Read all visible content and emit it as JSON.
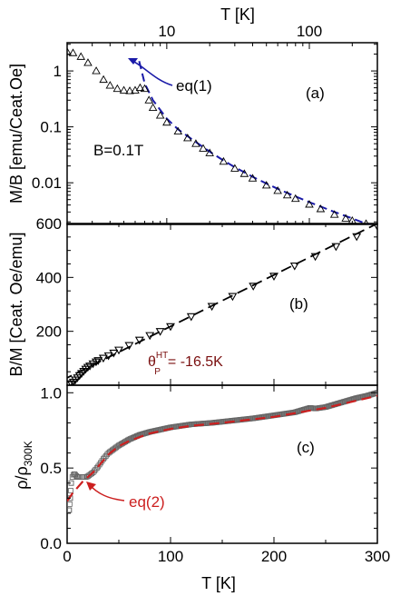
{
  "chart_data": [
    {
      "id": "a",
      "type": "scatter",
      "panel_label": "(a)",
      "ylabel": "M/B [emu/Ceat.Oe]",
      "top_xlabel": "T [K]",
      "top_xticks": [
        "10",
        "100"
      ],
      "x_scale": "log",
      "y_scale": "log",
      "xlim": [
        2,
        300
      ],
      "ylim": [
        0.0018,
        3.2
      ],
      "yticks": [
        {
          "v": 1,
          "label": "1"
        },
        {
          "v": 0.1,
          "label": "0.1"
        },
        {
          "v": 0.01,
          "label": "0.01"
        }
      ],
      "annotations": [
        {
          "text": "B=0.1T",
          "color": "#000000"
        },
        {
          "text": "eq(1)",
          "color": "#1a1aa8"
        }
      ],
      "series": [
        {
          "style": "open-triangle-up markers",
          "color": "#000000",
          "x": [
            2,
            2.2,
            2.5,
            2.8,
            3.2,
            3.6,
            4,
            4.5,
            5,
            5.5,
            6,
            6.5,
            7,
            7.5,
            8,
            9,
            10,
            12,
            14,
            16,
            18,
            20,
            25,
            30,
            35,
            40,
            50,
            60,
            70,
            80,
            100,
            120,
            150,
            180,
            200,
            250,
            300
          ],
          "y": [
            2.2,
            2.1,
            1.8,
            1.4,
            1.0,
            0.7,
            0.55,
            0.48,
            0.45,
            0.44,
            0.45,
            0.5,
            0.48,
            0.3,
            0.22,
            0.16,
            0.12,
            0.083,
            0.063,
            0.05,
            0.041,
            0.034,
            0.024,
            0.018,
            0.0145,
            0.012,
            0.009,
            0.0072,
            0.006,
            0.0052,
            0.0041,
            0.0034,
            0.0027,
            0.0023,
            0.0021,
            0.00185,
            0.0016
          ]
        },
        {
          "name": "eq(1)",
          "style": "dashed line",
          "color": "#1a1aa8",
          "x": [
            6.4,
            7,
            8,
            10,
            12,
            15,
            20,
            25,
            30,
            40,
            50,
            60,
            80,
            100,
            150,
            200,
            250,
            300
          ],
          "y": [
            1.5,
            0.6,
            0.3,
            0.14,
            0.09,
            0.06,
            0.036,
            0.025,
            0.019,
            0.0128,
            0.0097,
            0.0078,
            0.0057,
            0.0045,
            0.003,
            0.0023,
            0.00185,
            0.0016
          ]
        }
      ]
    },
    {
      "id": "b",
      "type": "scatter",
      "panel_label": "(b)",
      "ylabel": "B/M [Ceat. Oe/emu]",
      "xlim": [
        0,
        300
      ],
      "ylim": [
        0,
        600
      ],
      "yticks": [
        {
          "v": 200,
          "label": "200"
        },
        {
          "v": 400,
          "label": "400"
        },
        {
          "v": 600,
          "label": "600"
        }
      ],
      "annotation": {
        "symbol": "θ",
        "superscript": "HT",
        "subscript": "P",
        "text": "= -16.5K",
        "color": "#7a0f0f"
      },
      "series": [
        {
          "style": "triangle-down markers",
          "color": "#000000",
          "x": [
            2,
            4,
            6,
            8,
            10,
            12,
            14,
            16,
            18,
            20,
            22,
            25,
            28,
            30,
            35,
            40,
            45,
            50,
            60,
            70,
            80,
            90,
            100,
            120,
            140,
            160,
            180,
            200,
            220,
            240,
            260,
            280,
            300
          ],
          "y": [
            3,
            6,
            12,
            20,
            28,
            36,
            44,
            52,
            60,
            67,
            72,
            80,
            87,
            92,
            101,
            110,
            120,
            131,
            148,
            168,
            185,
            200,
            218,
            255,
            293,
            330,
            368,
            405,
            443,
            478,
            515,
            552,
            590
          ]
        },
        {
          "style": "dashed line",
          "color": "#000000",
          "x": [
            -5,
            300
          ],
          "y": [
            18,
            600
          ]
        }
      ]
    },
    {
      "id": "c",
      "type": "line",
      "panel_label": "(c)",
      "ylabel": "ρ/ρ",
      "ylabel_sub": "300K",
      "xlabel": "T [K]",
      "xlim": [
        0,
        300
      ],
      "ylim": [
        0,
        1.05
      ],
      "xticks": [
        0,
        100,
        200,
        300
      ],
      "yticks": [
        {
          "v": 0,
          "label": "0.0"
        },
        {
          "v": 0.5,
          "label": "0.5"
        },
        {
          "v": 1.0,
          "label": "1.0"
        }
      ],
      "annotations": [
        {
          "text": "eq(2)",
          "color": "#cc1f1f"
        }
      ],
      "series": [
        {
          "style": "open-square markers",
          "color": "#555555",
          "x": [
            2,
            3,
            4,
            5,
            6,
            7,
            8,
            10,
            12,
            15,
            18,
            20,
            25,
            30,
            35,
            40,
            50,
            60,
            70,
            80,
            90,
            100,
            110,
            120,
            140,
            160,
            180,
            200,
            220,
            235,
            240,
            250,
            260,
            270,
            280,
            290,
            300
          ],
          "y": [
            0.22,
            0.3,
            0.4,
            0.44,
            0.455,
            0.46,
            0.455,
            0.44,
            0.44,
            0.44,
            0.44,
            0.445,
            0.47,
            0.51,
            0.56,
            0.6,
            0.65,
            0.69,
            0.72,
            0.74,
            0.755,
            0.77,
            0.78,
            0.79,
            0.8,
            0.815,
            0.83,
            0.85,
            0.87,
            0.9,
            0.895,
            0.905,
            0.925,
            0.945,
            0.965,
            0.98,
            1.0
          ]
        },
        {
          "name": "eq(2)",
          "style": "dashed line",
          "color": "#cc1f1f",
          "x": [
            0,
            5,
            10,
            15,
            20,
            25,
            30,
            40,
            50,
            60,
            80,
            100,
            120,
            150,
            200,
            250,
            300
          ],
          "y": [
            0.28,
            0.33,
            0.37,
            0.41,
            0.44,
            0.47,
            0.51,
            0.59,
            0.645,
            0.68,
            0.73,
            0.76,
            0.78,
            0.8,
            0.84,
            0.9,
            0.98
          ]
        }
      ]
    }
  ]
}
